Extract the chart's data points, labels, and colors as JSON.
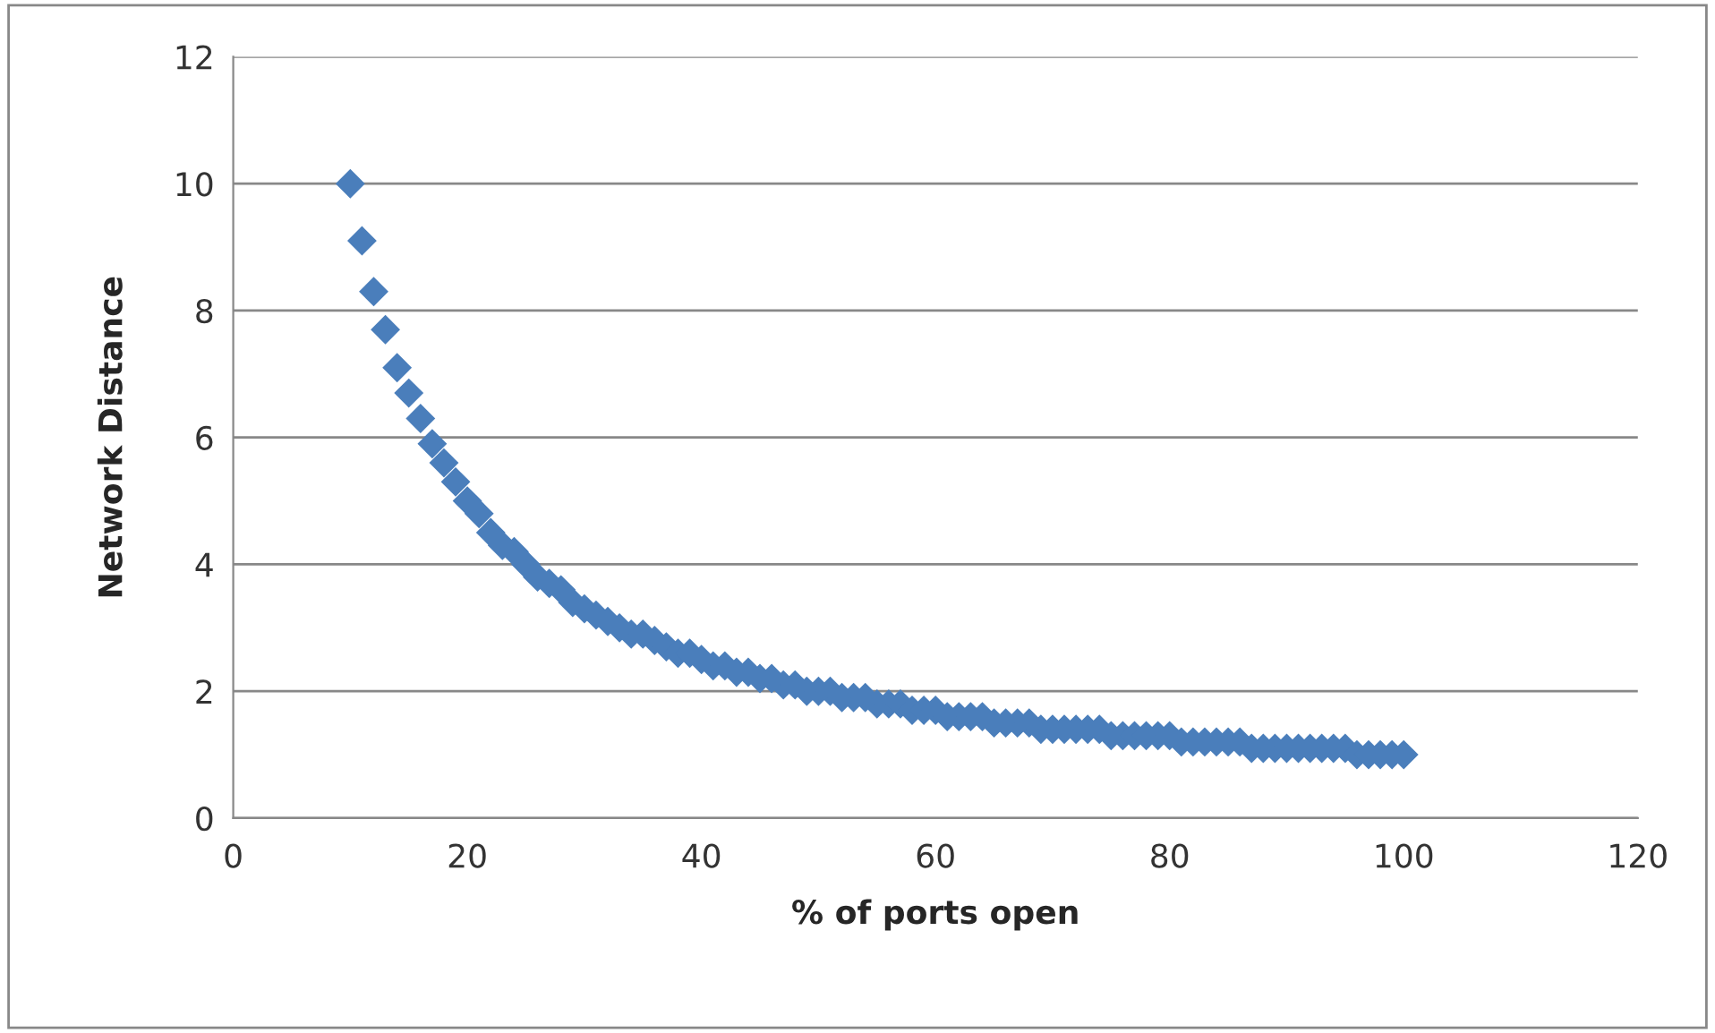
{
  "chart_data": {
    "type": "scatter",
    "xlabel": "% of ports open",
    "ylabel": "Network Distance",
    "x": [
      10,
      11,
      12,
      13,
      14,
      15,
      16,
      17,
      18,
      19,
      20,
      21,
      22,
      23,
      24,
      25,
      26,
      27,
      28,
      29,
      30,
      31,
      32,
      33,
      34,
      35,
      36,
      37,
      38,
      39,
      40,
      41,
      42,
      43,
      44,
      45,
      46,
      47,
      48,
      49,
      50,
      51,
      52,
      53,
      54,
      55,
      56,
      57,
      58,
      59,
      60,
      61,
      62,
      63,
      64,
      65,
      66,
      67,
      68,
      69,
      70,
      71,
      72,
      73,
      74,
      75,
      76,
      77,
      78,
      79,
      80,
      81,
      82,
      83,
      84,
      85,
      86,
      87,
      88,
      89,
      90,
      91,
      92,
      93,
      94,
      95,
      96,
      97,
      98,
      99,
      100
    ],
    "series": [
      {
        "color": "#4a7ebb",
        "values": [
          10,
          9.1,
          8.3,
          7.7,
          7.1,
          6.7,
          6.3,
          5.9,
          5.6,
          5.3,
          5,
          4.8,
          4.5,
          4.3,
          4.2,
          4,
          3.8,
          3.7,
          3.6,
          3.4,
          3.3,
          3.2,
          3.1,
          3,
          2.9,
          2.9,
          2.8,
          2.7,
          2.6,
          2.6,
          2.5,
          2.4,
          2.4,
          2.3,
          2.3,
          2.2,
          2.2,
          2.1,
          2.1,
          2,
          2,
          2,
          1.9,
          1.9,
          1.9,
          1.8,
          1.8,
          1.8,
          1.7,
          1.7,
          1.7,
          1.6,
          1.6,
          1.6,
          1.6,
          1.5,
          1.5,
          1.5,
          1.5,
          1.4,
          1.4,
          1.4,
          1.4,
          1.4,
          1.4,
          1.3,
          1.3,
          1.3,
          1.3,
          1.3,
          1.3,
          1.2,
          1.2,
          1.2,
          1.2,
          1.2,
          1.2,
          1.1,
          1.1,
          1.1,
          1.1,
          1.1,
          1.1,
          1.1,
          1.1,
          1.1,
          1,
          1,
          1,
          1,
          1
        ]
      }
    ],
    "xlim": [
      0,
      120
    ],
    "xticks": [
      0,
      20,
      40,
      60,
      80,
      100,
      120
    ],
    "ylim": [
      0,
      12
    ],
    "yticks": [
      0,
      2,
      4,
      6,
      8,
      10,
      12
    ],
    "grid": "y",
    "marker": "diamond"
  }
}
